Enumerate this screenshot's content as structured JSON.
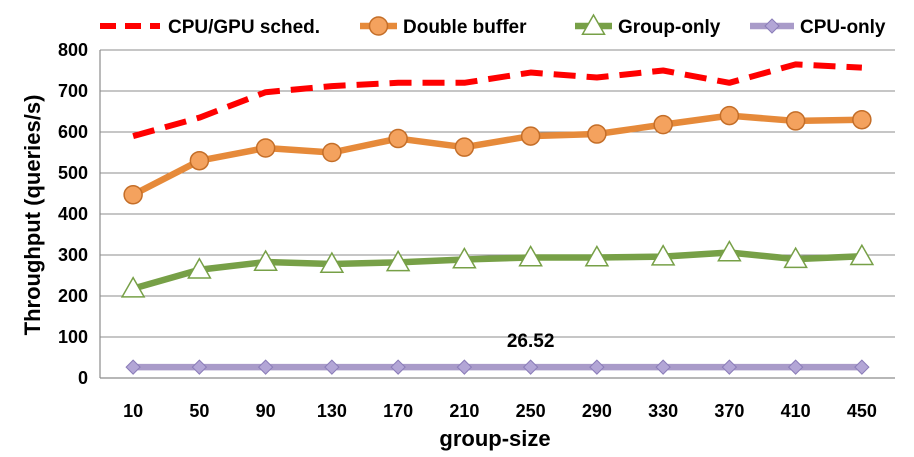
{
  "chart_data": {
    "type": "line",
    "title": "",
    "xlabel": "group-size",
    "ylabel": "Throughput (queries/s)",
    "categories": [
      "10",
      "50",
      "90",
      "130",
      "170",
      "210",
      "250",
      "290",
      "330",
      "370",
      "410",
      "450"
    ],
    "ylim": [
      0,
      800
    ],
    "yticks": [
      0,
      100,
      200,
      300,
      400,
      500,
      600,
      700,
      800
    ],
    "grid": "horizontal",
    "legend_position": "top",
    "series": [
      {
        "name": "CPU/GPU sched.",
        "color": "#ff0000",
        "style": "dashed",
        "marker": "none",
        "values": [
          590,
          635,
          697,
          712,
          720,
          720,
          745,
          733,
          750,
          720,
          765,
          757
        ]
      },
      {
        "name": "Double buffer",
        "color": "#e68a3a",
        "style": "solid",
        "marker": "circle",
        "values": [
          447,
          530,
          561,
          550,
          584,
          563,
          590,
          595,
          618,
          640,
          627,
          630
        ]
      },
      {
        "name": "Group-only",
        "color": "#77a047",
        "style": "solid",
        "marker": "triangle",
        "values": [
          218,
          264,
          283,
          278,
          282,
          289,
          294,
          294,
          296,
          306,
          290,
          297
        ]
      },
      {
        "name": "CPU-only",
        "color": "#a99bc9",
        "style": "solid",
        "marker": "diamond",
        "values": [
          26.52,
          26.52,
          26.52,
          26.52,
          26.52,
          26.52,
          26.52,
          26.52,
          26.52,
          26.52,
          26.52,
          26.52
        ]
      }
    ],
    "annotations": [
      {
        "text": "26.52",
        "series": "CPU-only",
        "category": "250"
      }
    ]
  }
}
